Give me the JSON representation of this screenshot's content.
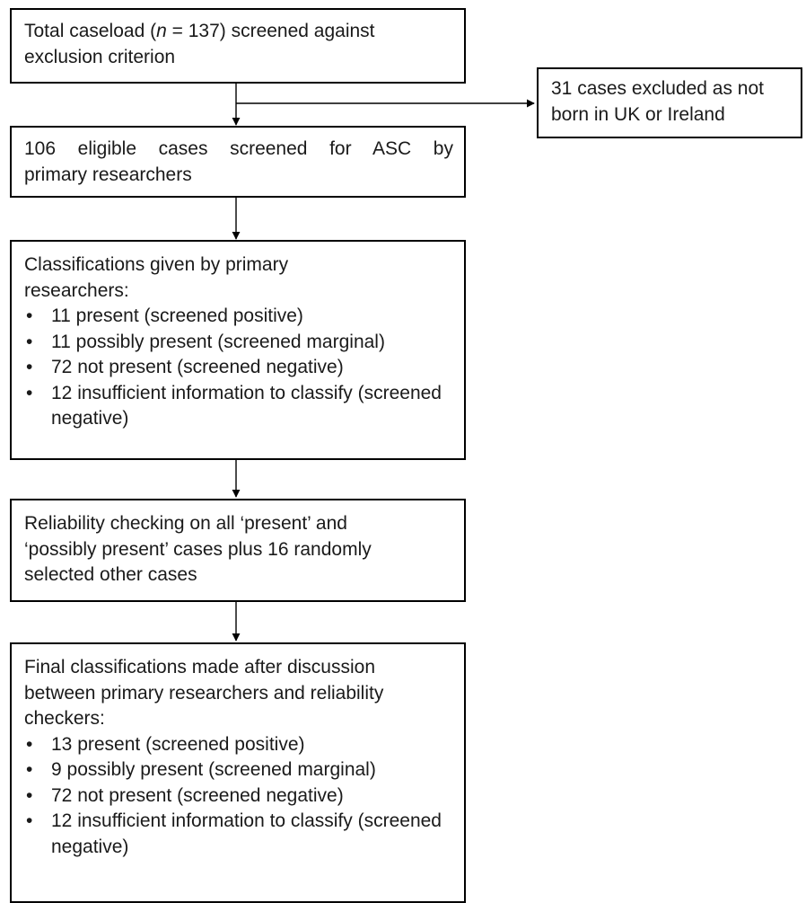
{
  "box1": {
    "line1_pre": "Total caseload (",
    "line1_italic": "n",
    "line1_post": " = 137)  screened against",
    "line2": "exclusion criterion"
  },
  "box_excluded": {
    "line1": "31 cases excluded as not",
    "line2": "born in UK or Ireland"
  },
  "box2": {
    "line1": "106 eligible cases screened for ASC by",
    "line2": "primary researchers"
  },
  "box3": {
    "heading_line1": "Classifications given by primary",
    "heading_line2": "researchers:",
    "items": [
      "11 present (screened positive)",
      "11 possibly present (screened marginal)",
      "72 not present (screened negative)",
      "12 insufficient information to classify (screened negative)"
    ]
  },
  "box4": {
    "line1": "Reliability checking on all ‘present’ and",
    "line2": "‘possibly present’ cases plus 16 randomly",
    "line3": "selected other cases"
  },
  "box5": {
    "heading_line1": "Final classifications made after discussion",
    "heading_line2": "between primary researchers and reliability",
    "heading_line3": "checkers:",
    "items": [
      "13 present (screened positive)",
      "9 possibly present (screened marginal)",
      "72 not present (screened negative)",
      "12 insufficient information to classify (screened negative)"
    ]
  }
}
